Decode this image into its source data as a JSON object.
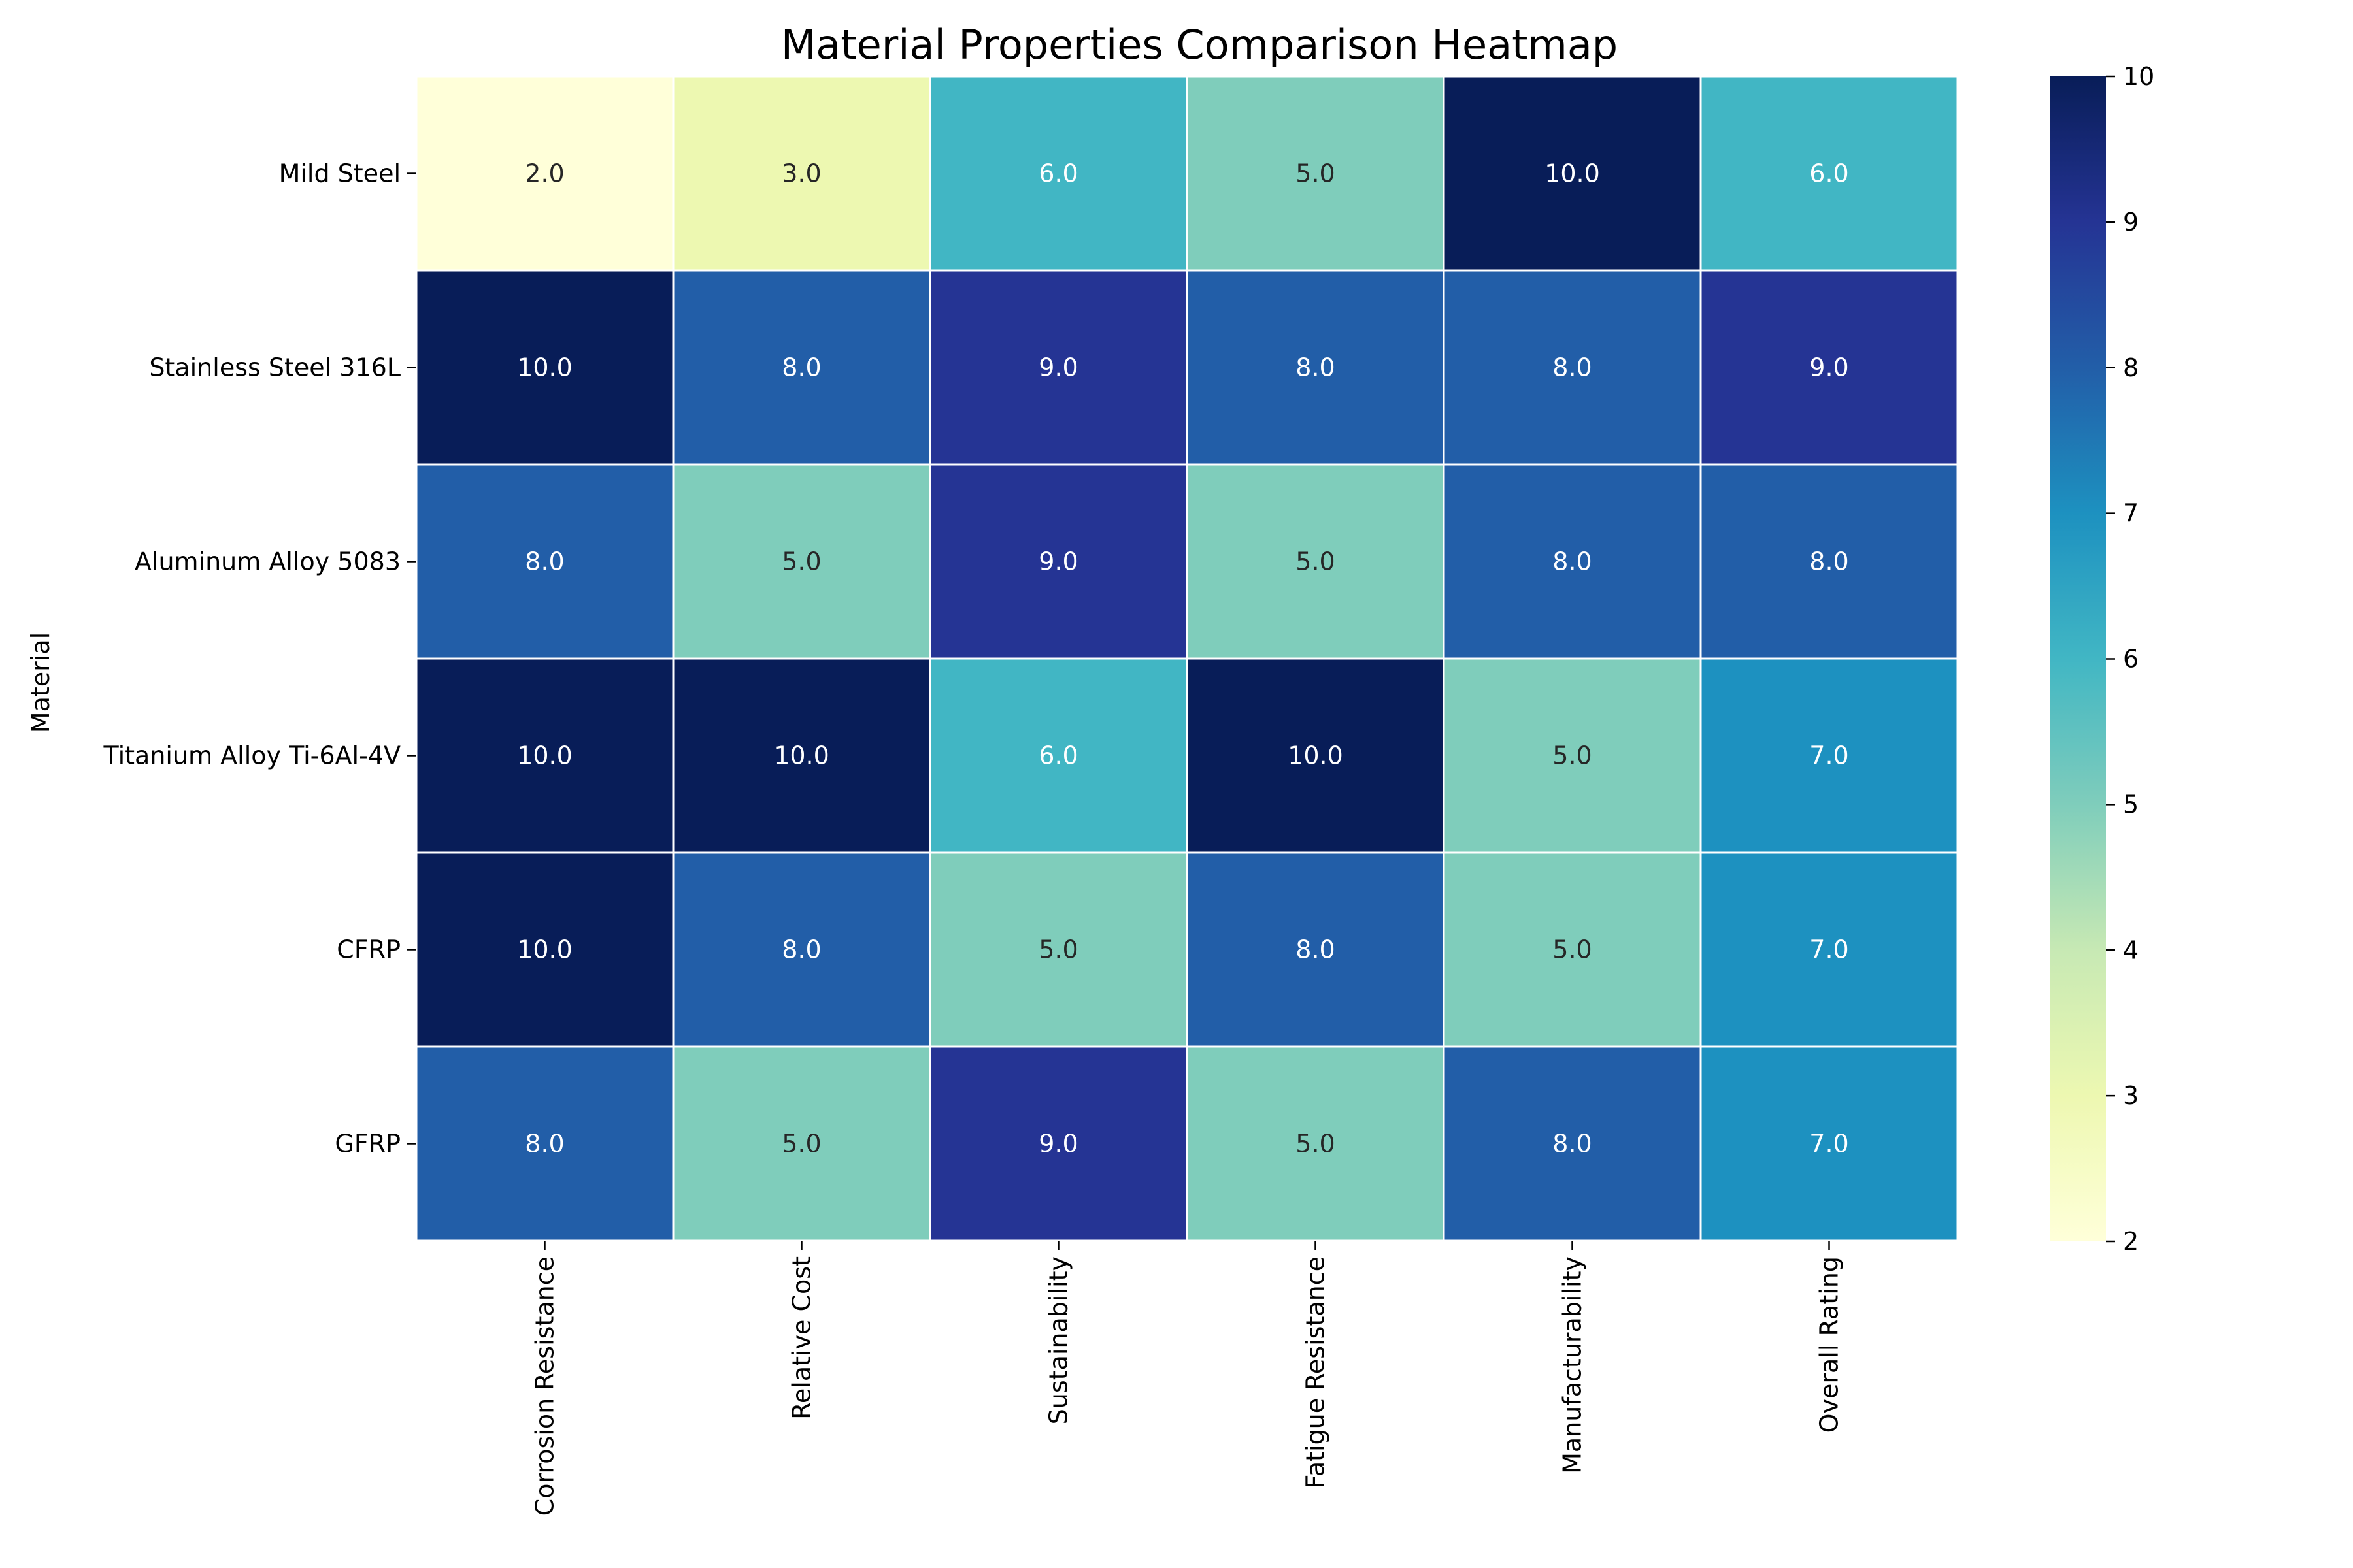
{
  "chart_data": {
    "type": "heatmap",
    "title": "Material Properties Comparison Heatmap",
    "xlabel": "",
    "ylabel": "Material",
    "rows": [
      "Mild Steel",
      "Stainless Steel 316L",
      "Aluminum Alloy 5083",
      "Titanium Alloy Ti-6Al-4V",
      "CFRP",
      "GFRP"
    ],
    "columns": [
      "Corrosion Resistance",
      "Relative Cost",
      "Sustainability",
      "Fatigue Resistance",
      "Manufacturability",
      "Overall Rating"
    ],
    "values": [
      [
        2,
        3,
        6,
        5,
        10,
        6
      ],
      [
        10,
        8,
        9,
        8,
        8,
        9
      ],
      [
        8,
        5,
        9,
        5,
        8,
        8
      ],
      [
        10,
        10,
        6,
        10,
        5,
        7
      ],
      [
        10,
        8,
        5,
        8,
        5,
        7
      ],
      [
        8,
        5,
        9,
        5,
        8,
        7
      ]
    ],
    "annotation_decimals": 1,
    "colormap": "YlGnBu",
    "colorbar": {
      "range": [
        2,
        10
      ],
      "ticks": [
        2,
        3,
        4,
        5,
        6,
        7,
        8,
        9,
        10
      ]
    },
    "grid": false,
    "cell_border_color": "#ffffff"
  }
}
